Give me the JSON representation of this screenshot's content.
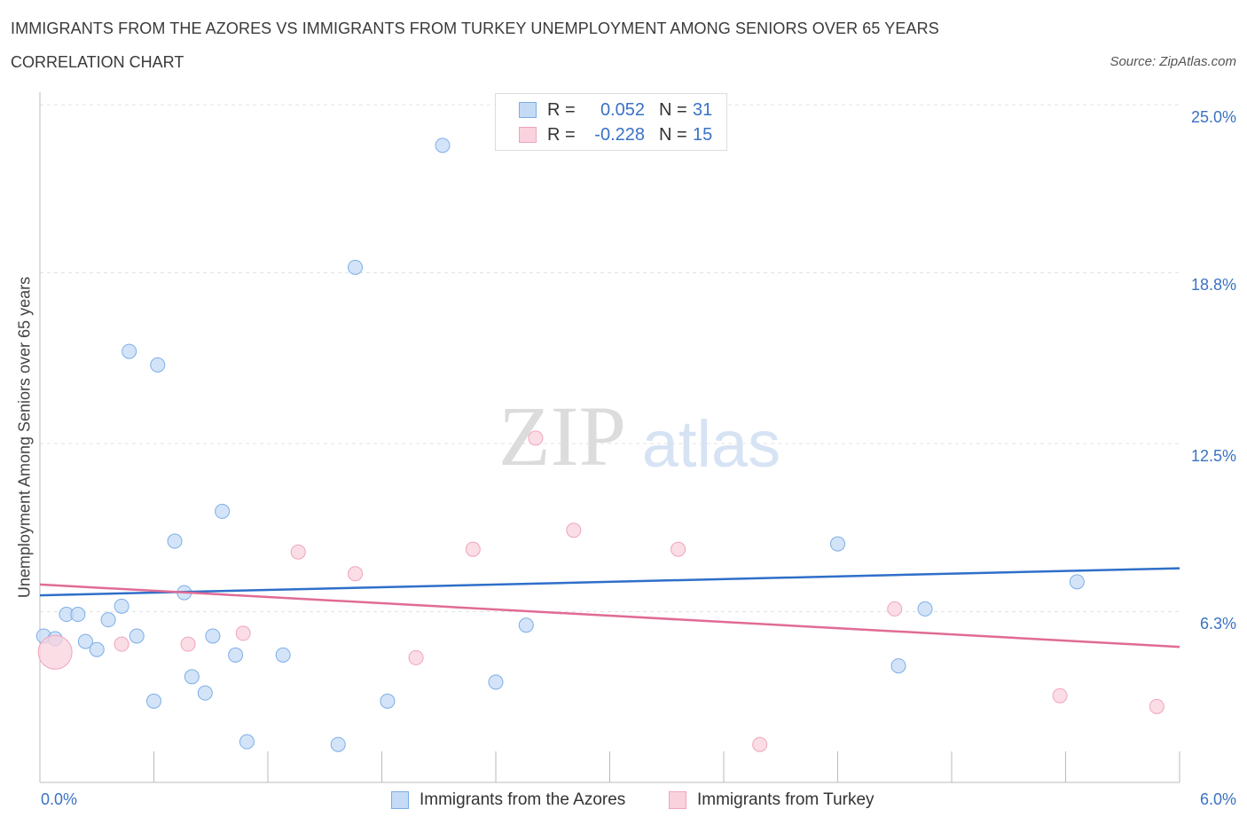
{
  "header": {
    "title": "IMMIGRANTS FROM THE AZORES VS IMMIGRANTS FROM TURKEY UNEMPLOYMENT AMONG SENIORS OVER 65 YEARS",
    "subtitle": "CORRELATION CHART",
    "source": "Source: ZipAtlas.com"
  },
  "watermark": {
    "zip": "ZIP",
    "atlas": "atlas"
  },
  "legend": {
    "rows": [
      {
        "r_label": "R =",
        "r_value": "0.052",
        "n_label": "N =",
        "n_value": "31"
      },
      {
        "r_label": "R =",
        "r_value": "-0.228",
        "n_label": "N =",
        "n_value": "15"
      }
    ]
  },
  "chart_data": {
    "type": "scatter",
    "title": "IMMIGRANTS FROM THE AZORES VS IMMIGRANTS FROM TURKEY UNEMPLOYMENT AMONG SENIORS OVER 65 YEARS",
    "xlabel": "",
    "ylabel": "Unemployment Among Seniors over 65 years",
    "xlim": [
      0,
      6.0
    ],
    "ylim": [
      0,
      25.0
    ],
    "x_tick_labels": [
      "0.0%",
      "6.0%"
    ],
    "y_tick_values": [
      6.3,
      12.5,
      18.8,
      25.0
    ],
    "y_tick_labels": [
      "6.3%",
      "12.5%",
      "18.8%",
      "25.0%"
    ],
    "grid": true,
    "series": [
      {
        "name": "Immigrants from the Azores",
        "color": "#7baee8",
        "fill": "#c5dbf5",
        "trend": {
          "x": [
            0,
            6.0
          ],
          "y": [
            6.9,
            7.9
          ]
        },
        "points": [
          [
            0.02,
            5.4
          ],
          [
            0.08,
            5.3
          ],
          [
            0.14,
            6.2
          ],
          [
            0.2,
            6.2
          ],
          [
            0.24,
            5.2
          ],
          [
            0.3,
            4.9
          ],
          [
            0.36,
            6.0
          ],
          [
            0.43,
            6.5
          ],
          [
            0.47,
            15.9
          ],
          [
            0.51,
            5.4
          ],
          [
            0.6,
            3.0
          ],
          [
            0.62,
            15.4
          ],
          [
            0.71,
            8.9
          ],
          [
            0.76,
            7.0
          ],
          [
            0.8,
            3.9
          ],
          [
            0.87,
            3.3
          ],
          [
            0.91,
            5.4
          ],
          [
            0.96,
            10.0
          ],
          [
            1.03,
            4.7
          ],
          [
            1.09,
            1.5
          ],
          [
            1.28,
            4.7
          ],
          [
            1.57,
            1.4
          ],
          [
            1.66,
            19.0
          ],
          [
            1.83,
            3.0
          ],
          [
            2.12,
            23.5
          ],
          [
            2.4,
            3.7
          ],
          [
            2.56,
            5.8
          ],
          [
            4.2,
            8.8
          ],
          [
            4.52,
            4.3
          ],
          [
            4.66,
            6.4
          ],
          [
            5.46,
            7.4
          ]
        ]
      },
      {
        "name": "Immigrants from Turkey",
        "color": "#f0a4bd",
        "fill": "#f9d2de",
        "trend": {
          "x": [
            0,
            6.0
          ],
          "y": [
            7.3,
            5.0
          ]
        },
        "points": [
          [
            0.08,
            4.8
          ],
          [
            0.43,
            5.1
          ],
          [
            0.78,
            5.1
          ],
          [
            1.07,
            5.5
          ],
          [
            1.36,
            8.5
          ],
          [
            1.66,
            7.7
          ],
          [
            1.98,
            4.6
          ],
          [
            2.28,
            8.6
          ],
          [
            2.61,
            12.7
          ],
          [
            2.81,
            9.3
          ],
          [
            3.36,
            8.6
          ],
          [
            3.79,
            1.4
          ],
          [
            4.5,
            6.4
          ],
          [
            5.37,
            3.2
          ],
          [
            5.88,
            2.8
          ]
        ]
      }
    ]
  },
  "bottom_legend": {
    "azores": "Immigrants from the Azores",
    "turkey": "Immigrants from Turkey"
  },
  "colors": {
    "azores_line": "#2f6fc9",
    "turkey_line": "#e06b96",
    "tick_text": "#3a72c4"
  }
}
